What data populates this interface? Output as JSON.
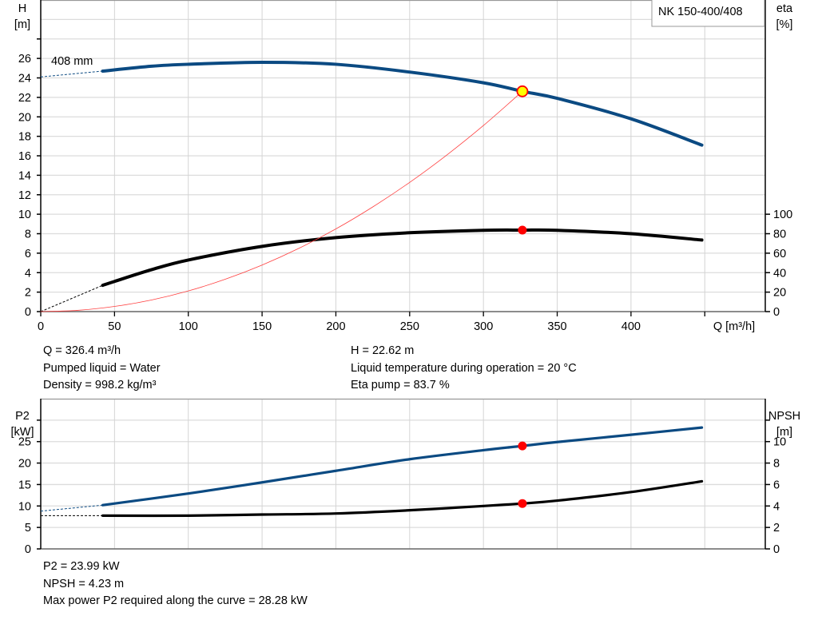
{
  "chart_data": [
    {
      "type": "line",
      "title": "NK 150-400/408",
      "xlabel": "Q [m³/h]",
      "ylabel": "H\n[m]",
      "ylabel_right": "eta\n[%]",
      "ylabel_lines": [
        "H",
        "[m]"
      ],
      "ylabel_right_lines": [
        "eta",
        "[%]"
      ],
      "xlim": [
        0,
        491
      ],
      "ylim": [
        0,
        32
      ],
      "y2lim": [
        0,
        320
      ],
      "grid": true,
      "x_ticks": [
        0,
        50,
        100,
        150,
        200,
        250,
        300,
        350,
        400
      ],
      "y_ticks": [
        0,
        2,
        4,
        6,
        8,
        10,
        12,
        14,
        16,
        18,
        20,
        22,
        24,
        26
      ],
      "y2_ticks": [
        0,
        20,
        40,
        60,
        80,
        100
      ],
      "curve_label": "408 mm",
      "series": [
        {
          "name": "408 mm",
          "axis": "H",
          "color": "#0b4a82",
          "dashed": [
            [
              0,
              24.1
            ],
            [
              42,
              24.7
            ]
          ],
          "x": [
            42,
            75,
            100,
            150,
            200,
            250,
            300,
            326.4,
            350,
            400,
            448
          ],
          "y": [
            24.7,
            25.2,
            25.4,
            25.6,
            25.4,
            24.6,
            23.5,
            22.62,
            21.9,
            19.8,
            17.1
          ]
        },
        {
          "axis": "eta",
          "color": "#000000",
          "dashed": [
            [
              0,
              0
            ],
            [
              42,
              27
            ]
          ],
          "x": [
            42,
            50,
            75,
            100,
            150,
            200,
            250,
            300,
            326.4,
            350,
            400,
            448
          ],
          "y": [
            27,
            31,
            43,
            53,
            67,
            76,
            81,
            83.5,
            83.7,
            83.5,
            80,
            73.5
          ]
        },
        {
          "axis": "H",
          "color": "#ff4040",
          "kind": "system-curve",
          "x": [
            0,
            25,
            50,
            75,
            100,
            125,
            150,
            175,
            200,
            225,
            250,
            275,
            300,
            326.4
          ],
          "y": [
            0,
            0.13,
            0.53,
            1.19,
            2.12,
            3.32,
            4.78,
            6.5,
            8.49,
            10.75,
            13.27,
            16.06,
            19.11,
            22.62
          ]
        }
      ],
      "duty_point": {
        "Q": 326.4,
        "H": 22.62,
        "eta": 83.7
      }
    },
    {
      "type": "line",
      "ylabel": "P2\n[kW]",
      "ylabel_right": "NPSH\n[m]",
      "ylabel_lines": [
        "P2",
        "[kW]"
      ],
      "ylabel_right_lines": [
        "NPSH",
        "[m]"
      ],
      "xlim": [
        0,
        491
      ],
      "ylim": [
        0,
        35
      ],
      "y2lim": [
        0,
        14
      ],
      "grid": true,
      "y_ticks": [
        0,
        5,
        10,
        15,
        20,
        25
      ],
      "y2_ticks": [
        0,
        2,
        4,
        6,
        8,
        10
      ],
      "series": [
        {
          "axis": "P2",
          "color": "#0b4a82",
          "dashed": [
            [
              0,
              8.8
            ],
            [
              42,
              10.2
            ]
          ],
          "x": [
            42,
            100,
            150,
            200,
            250,
            300,
            326.4,
            350,
            400,
            448
          ],
          "y": [
            10.2,
            12.9,
            15.5,
            18.2,
            20.9,
            23.0,
            23.99,
            24.9,
            26.6,
            28.28
          ]
        },
        {
          "axis": "NPSH",
          "color": "#000000",
          "dashed": [
            [
              0,
              3.1
            ],
            [
              42,
              3.1
            ]
          ],
          "x": [
            42,
            100,
            150,
            200,
            250,
            300,
            326.4,
            350,
            400,
            448
          ],
          "y": [
            3.1,
            3.1,
            3.2,
            3.3,
            3.6,
            4.0,
            4.23,
            4.5,
            5.3,
            6.3
          ]
        }
      ],
      "duty_point": {
        "Q": 326.4,
        "P2": 23.99,
        "NPSH": 4.23
      }
    }
  ],
  "info_top": {
    "left": [
      "Q = 326.4 m³/h",
      "Pumped liquid = Water",
      "Density = 998.2 kg/m³"
    ],
    "right": [
      "H = 22.62 m",
      "Liquid temperature during operation = 20 °C",
      "Eta pump = 83.7 %"
    ]
  },
  "info_bottom": [
    "P2 = 23.99 kW",
    "NPSH = 4.23 m",
    "Max power P2 required along the curve = 28.28 kW"
  ],
  "colors": {
    "blue_curve": "#0b4a82",
    "duty_marker": "#ff0000",
    "duty_marker_fill_top": "#ffff00",
    "grid": "#d9d9d9"
  }
}
